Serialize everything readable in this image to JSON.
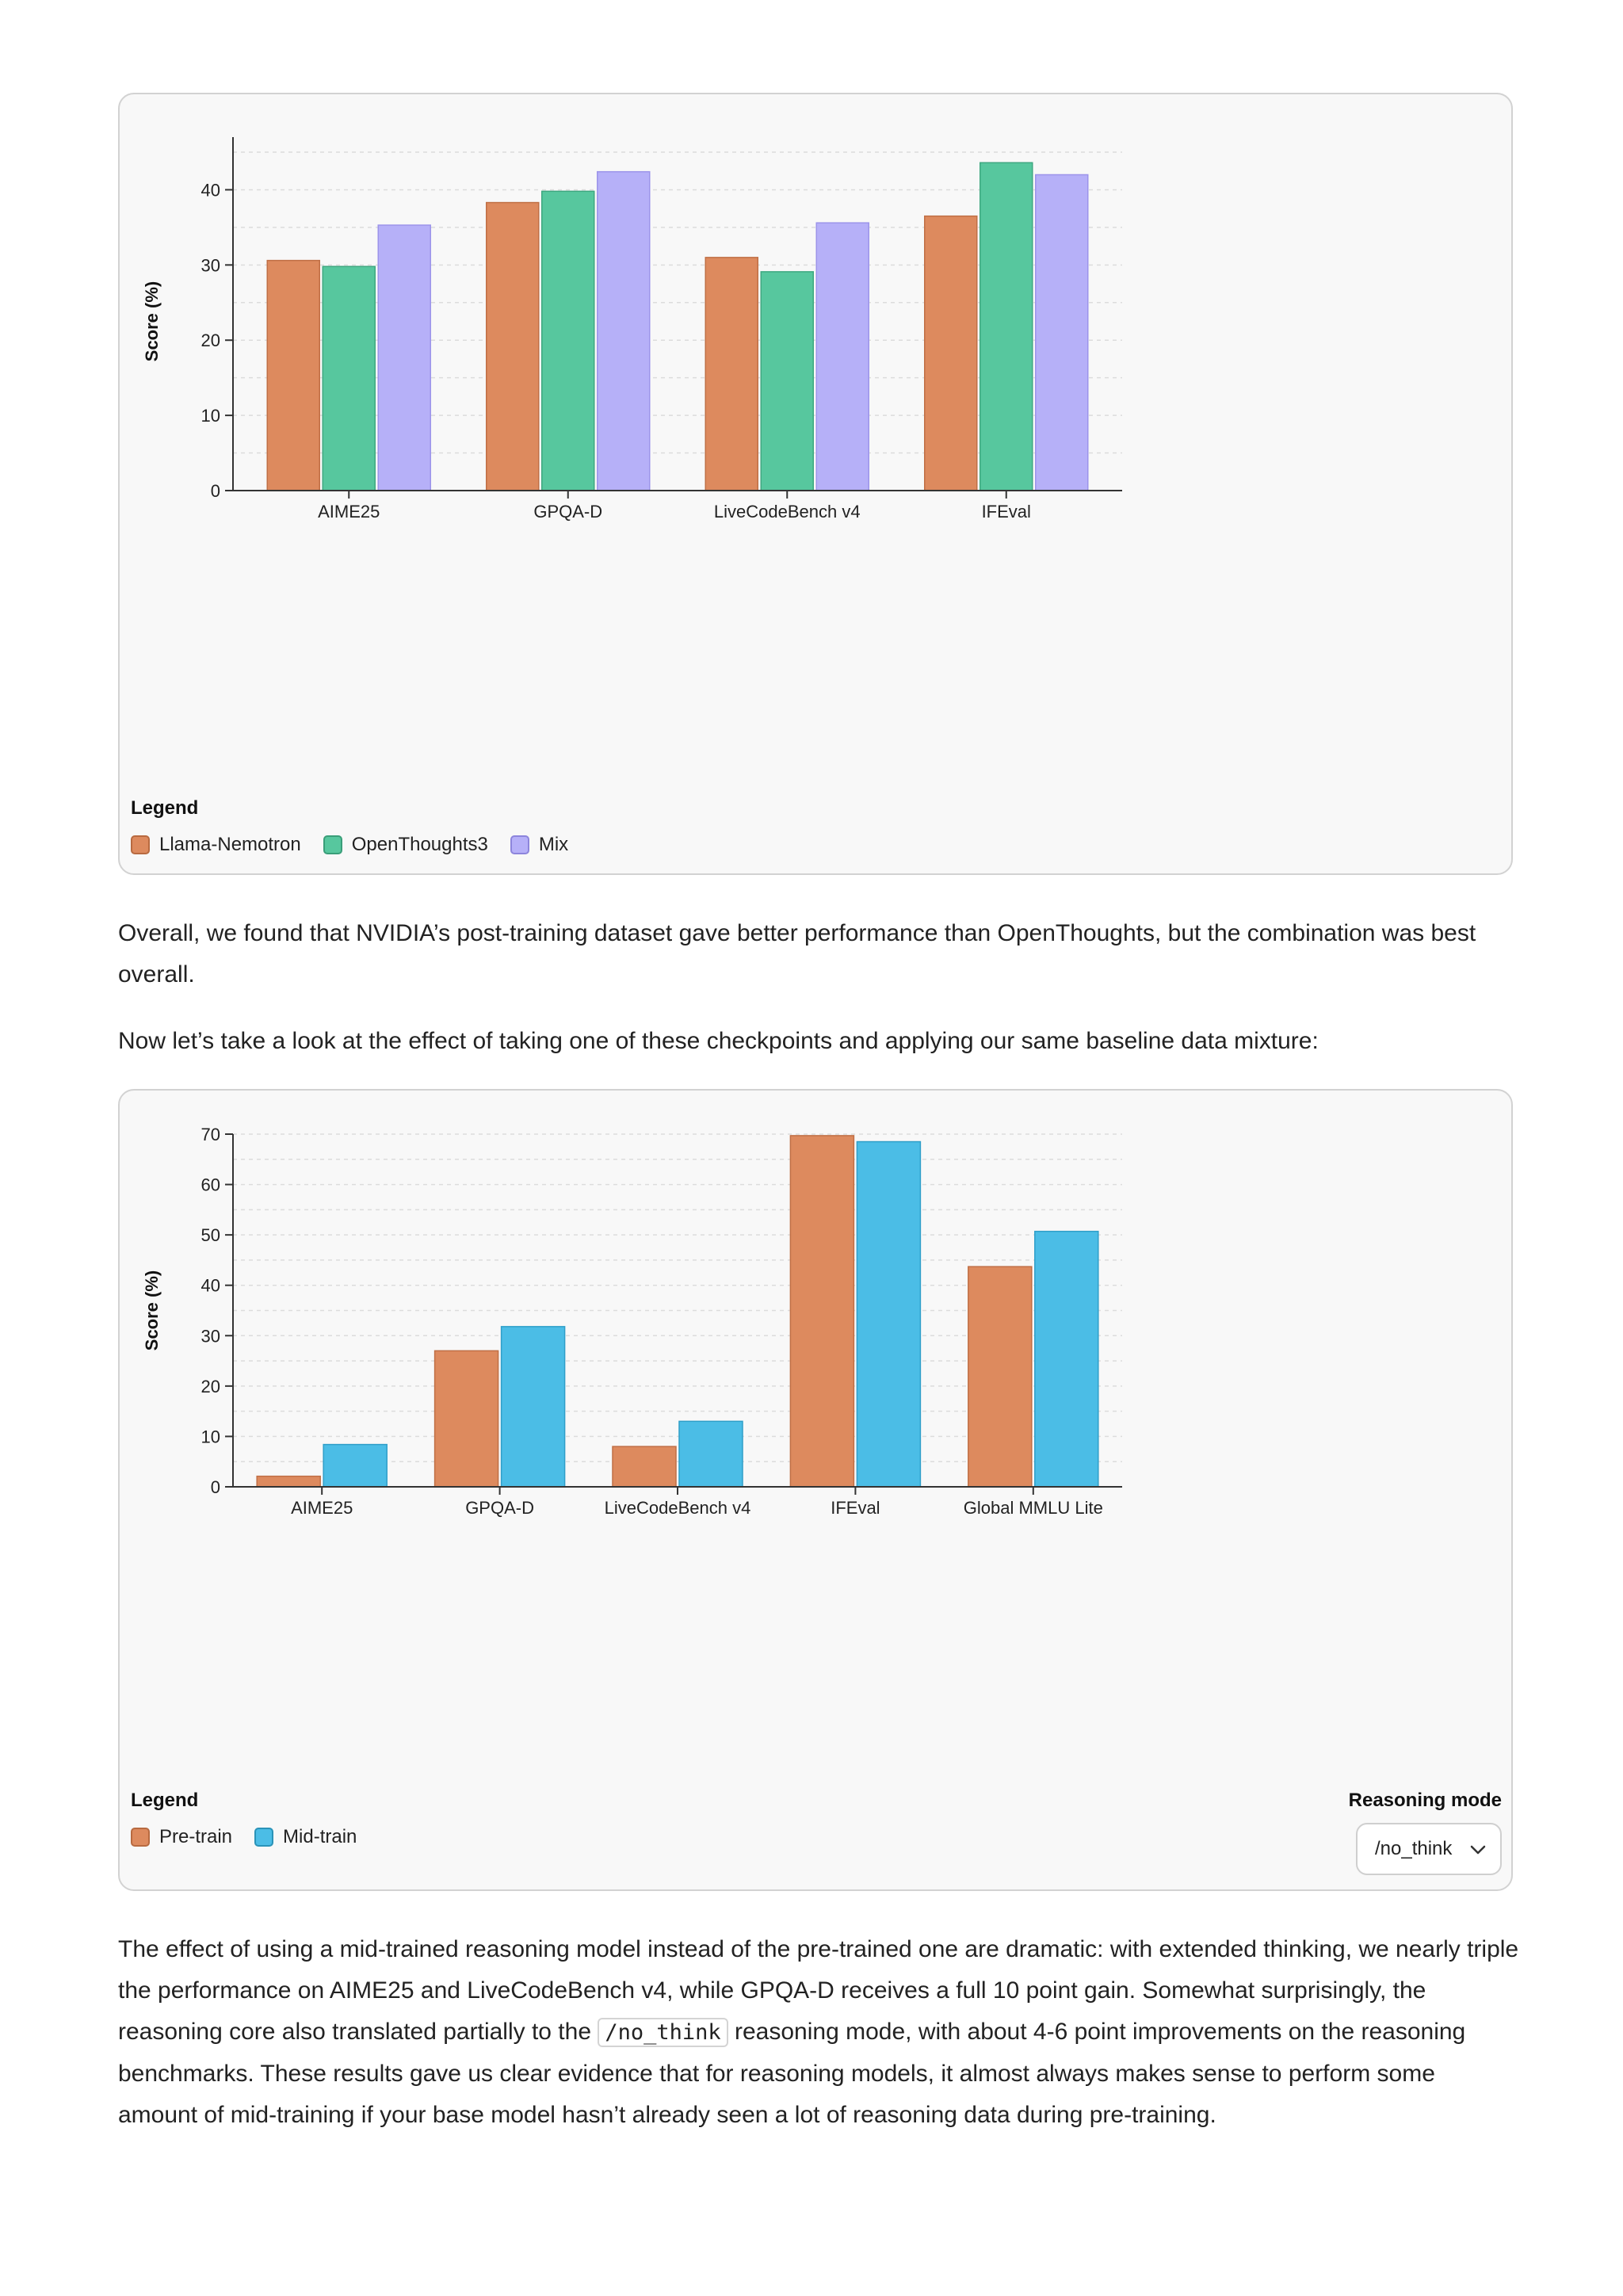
{
  "chart_data": [
    {
      "type": "bar",
      "categories": [
        "AIME25",
        "GPQA-D",
        "LiveCodeBench v4",
        "IFEval"
      ],
      "series": [
        {
          "name": "Llama-Nemotron",
          "color": "#dd8a5e",
          "values": [
            30.6,
            38.3,
            31.0,
            36.5
          ]
        },
        {
          "name": "OpenThoughts3",
          "color": "#57c79e",
          "values": [
            29.8,
            39.8,
            29.1,
            43.6
          ]
        },
        {
          "name": "Mix",
          "color": "#b6b0f8",
          "values": [
            35.3,
            42.4,
            35.6,
            42.0
          ]
        }
      ],
      "ylabel": "Score (%)",
      "yticks": [
        0,
        10,
        20,
        30,
        40
      ],
      "ylim": [
        0,
        45
      ],
      "grid": true,
      "legend_title": "Legend",
      "legend_placement": "bottom-left"
    },
    {
      "type": "bar",
      "categories": [
        "AIME25",
        "GPQA-D",
        "LiveCodeBench v4",
        "IFEval",
        "Global MMLU Lite"
      ],
      "series": [
        {
          "name": "Pre-train",
          "color": "#dd8a5e",
          "values": [
            2.1,
            27.0,
            8.0,
            69.7,
            43.7
          ]
        },
        {
          "name": "Mid-train",
          "color": "#4bbde6",
          "values": [
            8.4,
            31.8,
            13.0,
            68.5,
            50.7
          ]
        }
      ],
      "ylabel": "Score (%)",
      "yticks": [
        0,
        10,
        20,
        30,
        40,
        50,
        60,
        70
      ],
      "ylim": [
        0,
        70
      ],
      "grid": true,
      "legend_title": "Legend",
      "legend_placement": "bottom-left",
      "control": {
        "title": "Reasoning mode",
        "selected": "/no_think"
      }
    }
  ],
  "text": {
    "p1": "Overall, we found that NVIDIA’s post-training dataset gave better performance than OpenThoughts, but the combination was best overall.",
    "p2": "Now let’s take a look at the effect of taking one of these checkpoints and applying our same baseline data mixture:",
    "p3_before": "The effect of using a mid-trained reasoning model instead of the pre-trained one are dramatic: with extended thinking, we nearly triple the performance on AIME25 and LiveCodeBench v4, while GPQA-D receives a full 10 point gain. Somewhat surprisingly, the reasoning core also translated partially to the ",
    "p3_code": "/no_think",
    "p3_after": " reasoning mode, with about 4-6 point improvements on the reasoning benchmarks. These results gave us clear evidence that for reasoning models, it almost always makes sense to perform some amount of mid-training if your base model hasn’t already seen a lot of reasoning data during pre-training."
  }
}
